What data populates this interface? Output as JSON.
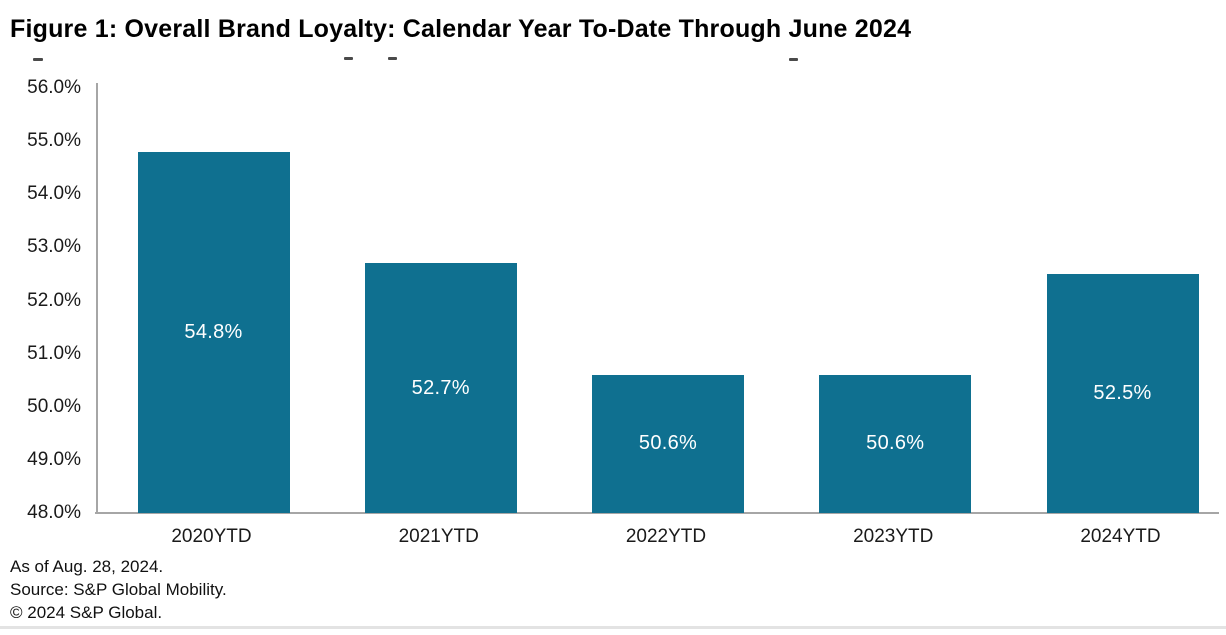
{
  "page": {
    "title": "Figure 1: Overall Brand Loyalty: Calendar Year To-Date Through June 2024"
  },
  "chart_data": {
    "type": "bar",
    "title": "Figure 1: Overall Brand Loyalty: Calendar Year To-Date Through June 2024",
    "categories": [
      "2020YTD",
      "2021YTD",
      "2022YTD",
      "2023YTD",
      "2024YTD"
    ],
    "values": [
      54.8,
      52.7,
      50.6,
      50.6,
      52.5
    ],
    "bar_labels": [
      "54.8%",
      "52.7%",
      "50.6%",
      "50.6%",
      "52.5%"
    ],
    "xlabel": "",
    "ylabel": "",
    "ylim": [
      48.0,
      56.0
    ],
    "ytick_step": 1.0,
    "ytick_labels": [
      "48.0%",
      "49.0%",
      "50.0%",
      "51.0%",
      "52.0%",
      "53.0%",
      "54.0%",
      "55.0%",
      "56.0%"
    ],
    "grid": false,
    "legend": "none",
    "colors": {
      "bar": "#0f7090",
      "bar_label_text": "#ffffff",
      "axis_line": "#a6a6a6",
      "tick_text": "#1a1a1a"
    }
  },
  "footer": {
    "as_of": "As of Aug. 28, 2024.",
    "source": "Source: S&P Global Mobility.",
    "copyright": "© 2024 S&P Global."
  }
}
